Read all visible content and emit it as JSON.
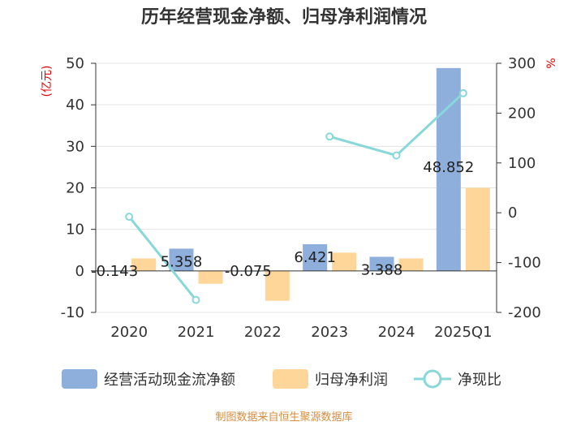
{
  "title": "历年经营现金净额、归母净利润情况",
  "left_unit": "(亿元)",
  "right_unit": "%",
  "source": "制图数据来自恒生聚源数据库",
  "colors": {
    "operating_cf": "#8eaedc",
    "net_profit": "#ffd699",
    "ratio": "#88d8da",
    "unit_red": "#e60000",
    "source": "#d98c3a"
  },
  "legend": {
    "operating_cf": "经营活动现金流净额",
    "net_profit": "归母净利润",
    "ratio": "净现比"
  },
  "chart_data": {
    "type": "bar",
    "title": "历年经营现金净额、归母净利润情况",
    "categories": [
      "2020",
      "2021",
      "2022",
      "2023",
      "2024",
      "2025Q1"
    ],
    "y_left": {
      "label": "(亿元)",
      "lim": [
        -10,
        50
      ],
      "ticks": [
        "-10",
        "0",
        "10",
        "20",
        "30",
        "40",
        "50"
      ]
    },
    "y_right": {
      "label": "%",
      "lim": [
        -200,
        300
      ],
      "ticks": [
        "-200",
        "-100",
        "0",
        "100",
        "200",
        "300"
      ]
    },
    "grid": true,
    "legend_position": "bottom",
    "series": [
      {
        "name": "经营活动现金流净额",
        "type": "bar",
        "axis": "left",
        "values": [
          -0.143,
          5.358,
          -0.075,
          6.421,
          3.388,
          48.852
        ],
        "labels": [
          "-0.143",
          "5.358",
          "-0.075",
          "6.421",
          "3.388",
          "48.852"
        ]
      },
      {
        "name": "归母净利润",
        "type": "bar",
        "axis": "left",
        "values": [
          3.0,
          -3.1,
          -7.2,
          4.4,
          3.0,
          20.0
        ]
      },
      {
        "name": "净现比",
        "type": "line",
        "axis": "right",
        "values": [
          -8,
          -175,
          null,
          153,
          115,
          240
        ]
      }
    ]
  }
}
